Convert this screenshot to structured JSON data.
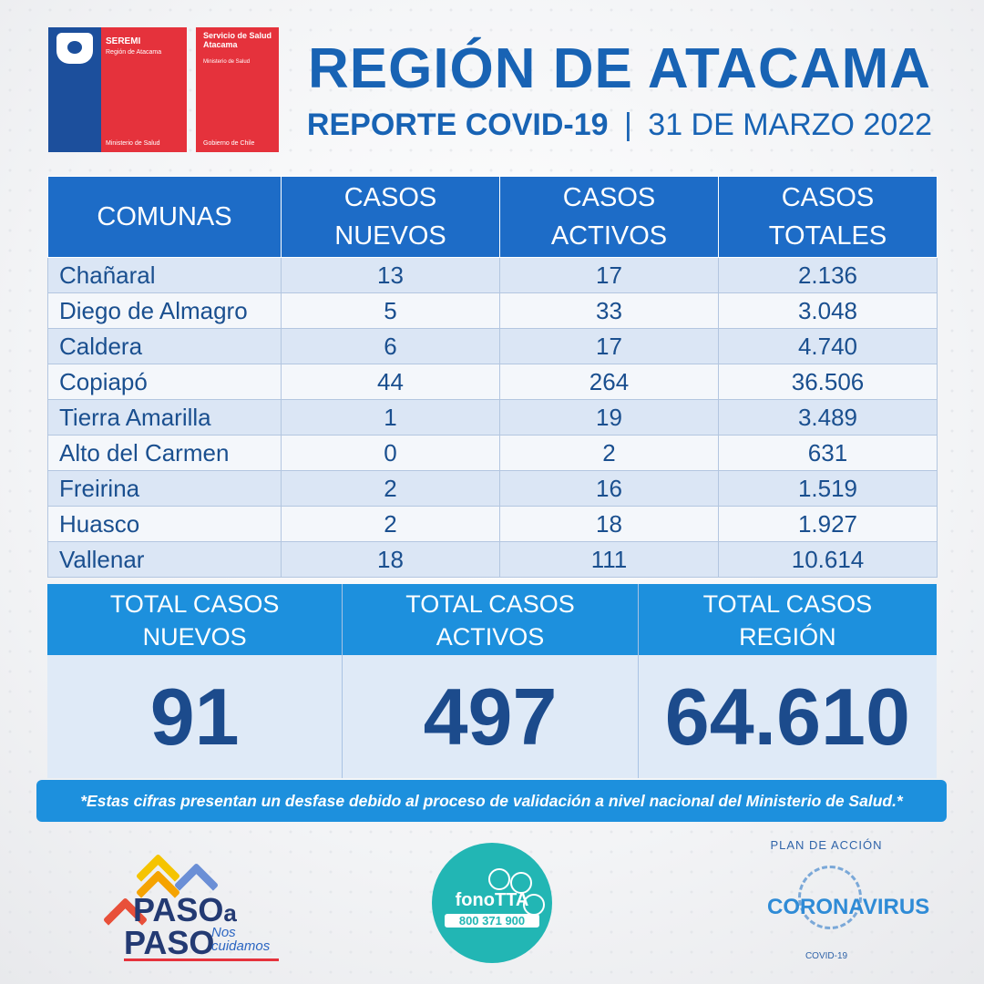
{
  "header": {
    "seremi_title": "SEREMI",
    "seremi_region": "Región de Atacama",
    "seremi_ministry": "Ministerio de Salud",
    "servicio_title": "Servicio de Salud Atacama",
    "servicio_ministry": "Ministerio de Salud",
    "servicio_gov": "Gobierno de Chile",
    "title": "REGIÓN DE ATACAMA",
    "subtitle_bold": "REPORTE COVID-19",
    "subtitle_sep": "|",
    "subtitle_date": "31 DE MARZO 2022"
  },
  "table": {
    "headers": [
      "COMUNAS",
      "CASOS NUEVOS",
      "CASOS ACTIVOS",
      "CASOS TOTALES"
    ],
    "rows": [
      {
        "comuna": "Chañaral",
        "nuevos": "13",
        "activos": "17",
        "totales": "2.136"
      },
      {
        "comuna": "Diego de Almagro",
        "nuevos": "5",
        "activos": "33",
        "totales": "3.048"
      },
      {
        "comuna": "Caldera",
        "nuevos": "6",
        "activos": "17",
        "totales": "4.740"
      },
      {
        "comuna": "Copiapó",
        "nuevos": "44",
        "activos": "264",
        "totales": "36.506"
      },
      {
        "comuna": "Tierra Amarilla",
        "nuevos": "1",
        "activos": "19",
        "totales": "3.489"
      },
      {
        "comuna": "Alto del Carmen",
        "nuevos": "0",
        "activos": "2",
        "totales": "631"
      },
      {
        "comuna": "Freirina",
        "nuevos": "2",
        "activos": "16",
        "totales": "1.519"
      },
      {
        "comuna": "Huasco",
        "nuevos": "2",
        "activos": "18",
        "totales": "1.927"
      },
      {
        "comuna": "Vallenar",
        "nuevos": "18",
        "activos": "111",
        "totales": "10.614"
      }
    ]
  },
  "totals": [
    {
      "label_1": "TOTAL CASOS",
      "label_2": "NUEVOS",
      "value": "91"
    },
    {
      "label_1": "TOTAL CASOS",
      "label_2": "ACTIVOS",
      "value": "497"
    },
    {
      "label_1": "TOTAL CASOS",
      "label_2": "REGIÓN",
      "value": "64.610"
    }
  ],
  "note": "*Estas cifras presentan un desfase debido al proceso de validación a nivel nacional del Ministerio de Salud.*",
  "footer": {
    "paso_1": "PASO",
    "paso_a": "a",
    "paso_2": "PASO",
    "paso_nos": "Nos",
    "paso_cuidamos": "cuidamos",
    "fono_name": "fonoTTA",
    "fono_number": "800 371 900",
    "plan": "PLAN DE ACCIÓN",
    "corona": "CORONAVIRUS",
    "covid": "COVID-19"
  },
  "colors": {
    "primary_blue": "#1863b4",
    "header_blue": "#1d6cc7",
    "totals_blue": "#1d90dd",
    "gov_red": "#e5323c",
    "teal": "#22b6b4"
  }
}
